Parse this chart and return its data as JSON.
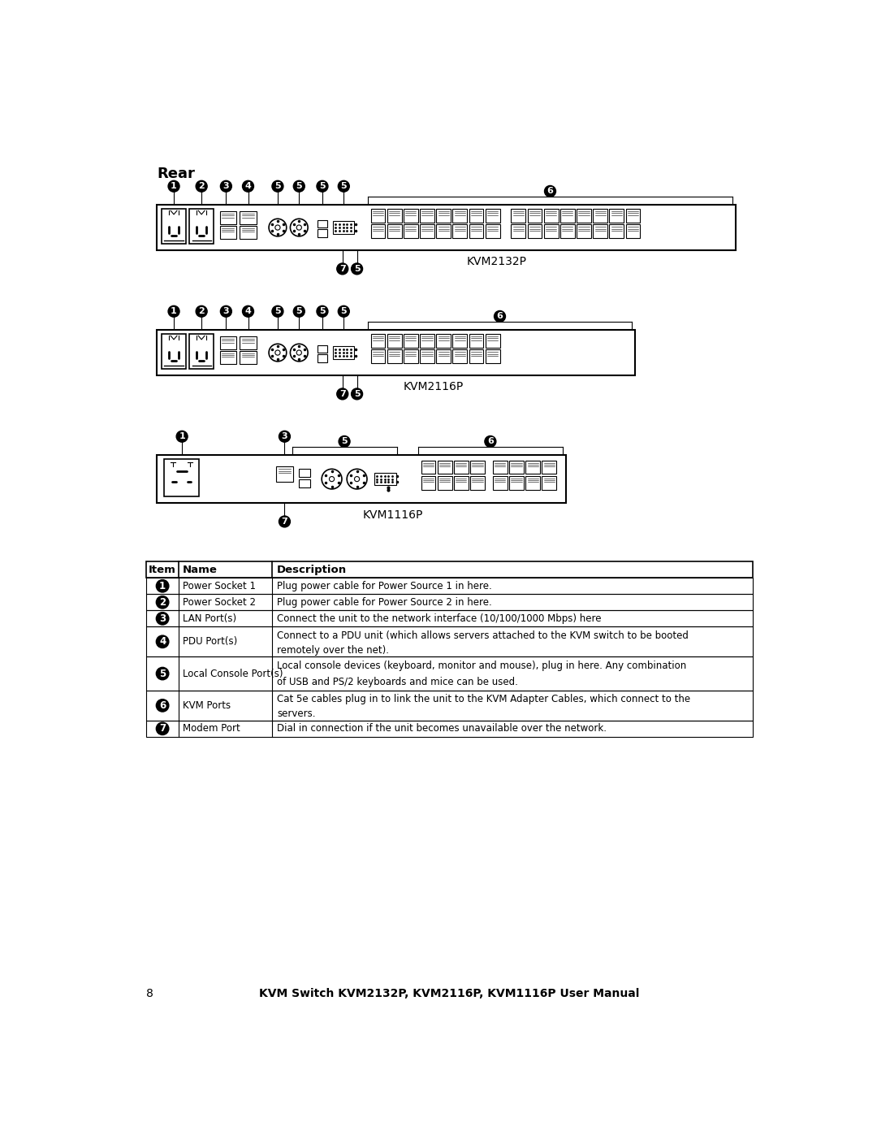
{
  "title_rear": "Rear",
  "device_labels": [
    "KVM2132P",
    "KVM2116P",
    "KVM1116P"
  ],
  "table_headers": [
    "Item",
    "Name",
    "Description"
  ],
  "table_rows": [
    {
      "item": "1",
      "name": "Power Socket 1",
      "description": "Plug power cable for Power Source 1 in here."
    },
    {
      "item": "2",
      "name": "Power Socket 2",
      "description": "Plug power cable for Power Source 2 in here."
    },
    {
      "item": "3",
      "name": "LAN Port(s)",
      "description": "Connect the unit to the network interface (10/100/1000 Mbps) here"
    },
    {
      "item": "4",
      "name": "PDU Port(s)",
      "description": "Connect to a PDU unit (which allows servers attached to the KVM switch to be booted\nremotely over the net)."
    },
    {
      "item": "5",
      "name": "Local Console Port(s)",
      "description": "Local console devices (keyboard, monitor and mouse), plug in here. Any combination\nof USB and PS/2 keyboards and mice can be used."
    },
    {
      "item": "6",
      "name": "KVM Ports",
      "description": "Cat 5e cables plug in to link the unit to the KVM Adapter Cables, which connect to the\nservers."
    },
    {
      "item": "7",
      "name": "Modem Port",
      "description": "Dial in connection if the unit becomes unavailable over the network."
    }
  ],
  "footer_text": "KVM Switch KVM2132P, KVM2116P, KVM1116P User Manual",
  "bg_color": "#ffffff",
  "text_color": "#000000"
}
